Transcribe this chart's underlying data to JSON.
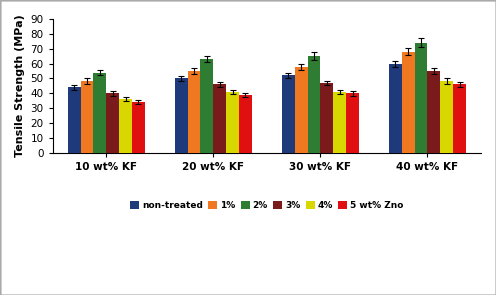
{
  "groups": [
    "10 wt% KF",
    "20 wt% KF",
    "30 wt% KF",
    "40 wt% KF"
  ],
  "series": [
    {
      "label": "non-treated",
      "color": "#1f3a7a",
      "values": [
        44,
        50,
        52,
        60
      ],
      "errors": [
        1.5,
        1.5,
        2.0,
        2.0
      ]
    },
    {
      "label": "1%",
      "color": "#f07820",
      "values": [
        48,
        55,
        58,
        68
      ],
      "errors": [
        2.0,
        2.0,
        2.0,
        2.5
      ]
    },
    {
      "label": "2%",
      "color": "#2e7d32",
      "values": [
        54,
        63,
        65,
        74
      ],
      "errors": [
        2.0,
        2.0,
        2.5,
        3.0
      ]
    },
    {
      "label": "3%",
      "color": "#7b1a1a",
      "values": [
        40,
        46,
        47,
        55
      ],
      "errors": [
        1.5,
        1.5,
        1.5,
        2.0
      ]
    },
    {
      "label": "4%",
      "color": "#d8d800",
      "values": [
        36,
        41,
        41,
        48
      ],
      "errors": [
        1.5,
        1.5,
        1.5,
        2.0
      ]
    },
    {
      "label": "5 wt% Zno",
      "color": "#e01010",
      "values": [
        34,
        39,
        40,
        46
      ],
      "errors": [
        1.5,
        1.5,
        1.5,
        1.5
      ]
    }
  ],
  "ylabel": "Tensile Strength (MPa)",
  "ylim": [
    0,
    90
  ],
  "yticks": [
    0,
    10,
    20,
    30,
    40,
    50,
    60,
    70,
    80,
    90
  ],
  "background_color": "#ffffff",
  "bar_width": 0.12,
  "legend_fontsize": 6.5,
  "axis_fontsize": 8,
  "tick_fontsize": 7.5,
  "border_color": "#aaaaaa"
}
